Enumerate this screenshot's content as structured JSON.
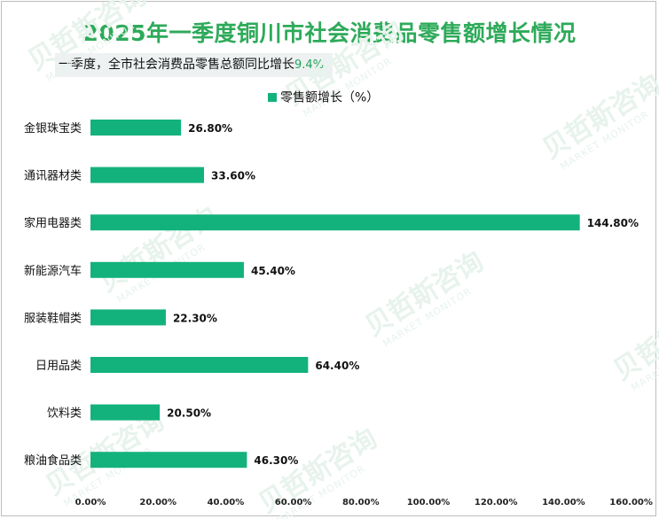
{
  "colors": {
    "title": "#2eaa5a",
    "bar": "#13b27c",
    "highlight": "#23a35a"
  },
  "header": {
    "title": "2025年一季度铜川市社会消费品零售额增长情况",
    "subtitle_prefix": "一季度，全市社会消费品零售总额同比增长",
    "subtitle_value": "9.4%"
  },
  "chart_data": {
    "type": "bar",
    "orientation": "horizontal",
    "title": "2025年一季度铜川市社会消费品零售额增长情况",
    "legend": "零售额增长（%）",
    "legend_position": "top-center",
    "categories": [
      "金银珠宝类",
      "通讯器材类",
      "家用电器类",
      "新能源汽车",
      "服装鞋帽类",
      "日用品类",
      "饮料类",
      "粮油食品类"
    ],
    "values": [
      26.8,
      33.6,
      144.8,
      45.4,
      22.3,
      64.4,
      20.5,
      46.3
    ],
    "value_labels": [
      "26.80%",
      "33.60%",
      "144.80%",
      "45.40%",
      "22.30%",
      "64.40%",
      "20.50%",
      "46.30%"
    ],
    "xticks": [
      "0.00%",
      "20.00%",
      "40.00%",
      "60.00%",
      "80.00%",
      "100.00%",
      "120.00%",
      "140.00%",
      "160.00%"
    ],
    "xlim": [
      0,
      160
    ],
    "grid": false
  },
  "watermark": {
    "cn": "贝哲斯咨询",
    "en": "MARKET MONITOR"
  }
}
